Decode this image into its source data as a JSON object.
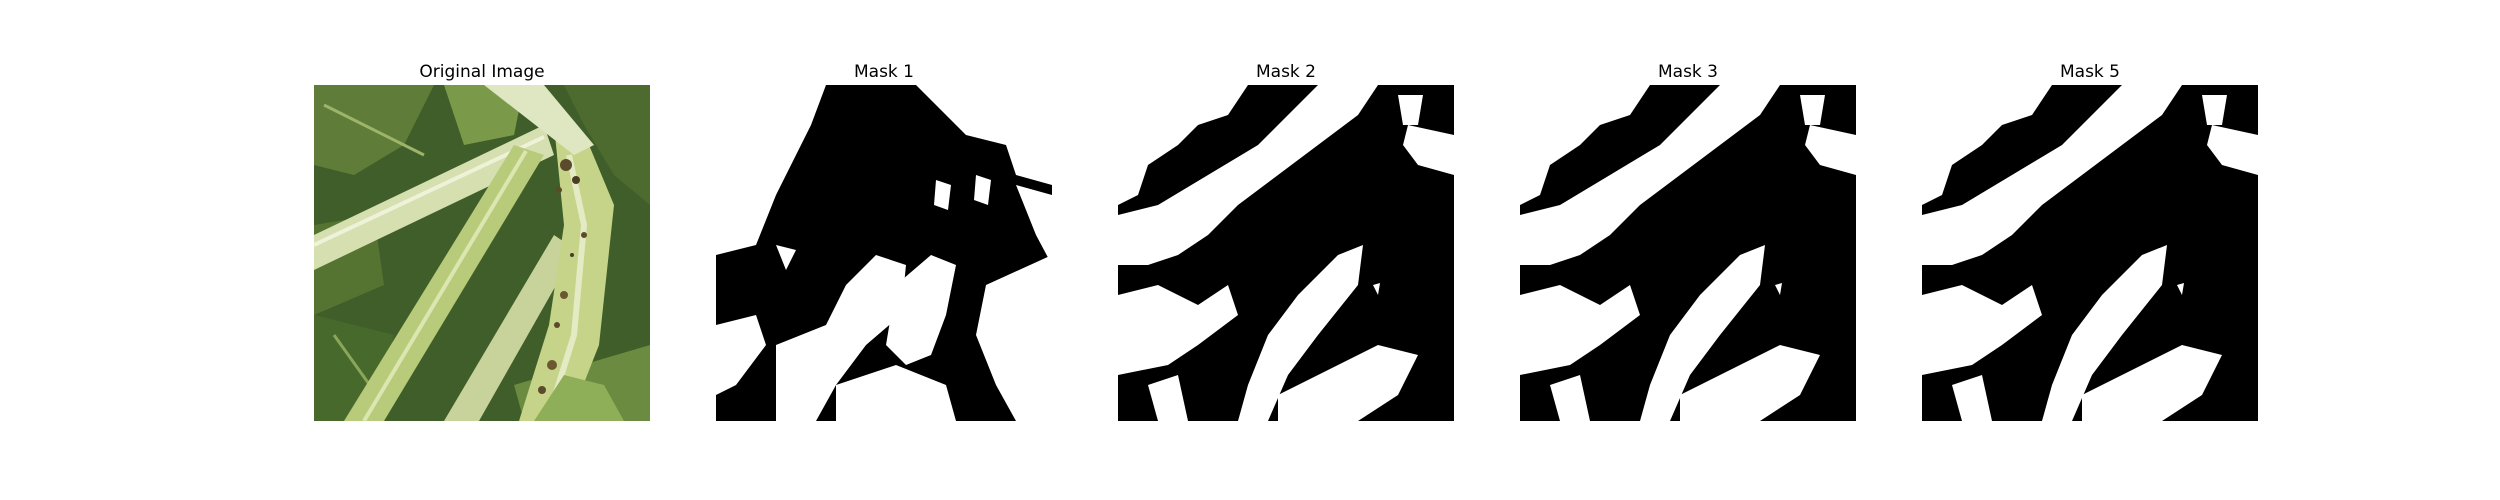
{
  "figure": {
    "background": "#ffffff",
    "panels": [
      {
        "title": "Original Image",
        "kind": "photo"
      },
      {
        "title": "Mask 1",
        "kind": "mask"
      },
      {
        "title": "Mask 2",
        "kind": "mask"
      },
      {
        "title": "Mask 3",
        "kind": "mask"
      },
      {
        "title": "Mask 5",
        "kind": "mask"
      }
    ],
    "colors": {
      "mask_foreground": "#ffffff",
      "mask_background": "#000000",
      "leaf_dark": "#3f5e2a",
      "leaf_mid": "#6b8a3c",
      "stem_light": "#c9d79a",
      "stem_pale": "#dfe6c2",
      "lesion_brown": "#5b4a2b"
    }
  }
}
